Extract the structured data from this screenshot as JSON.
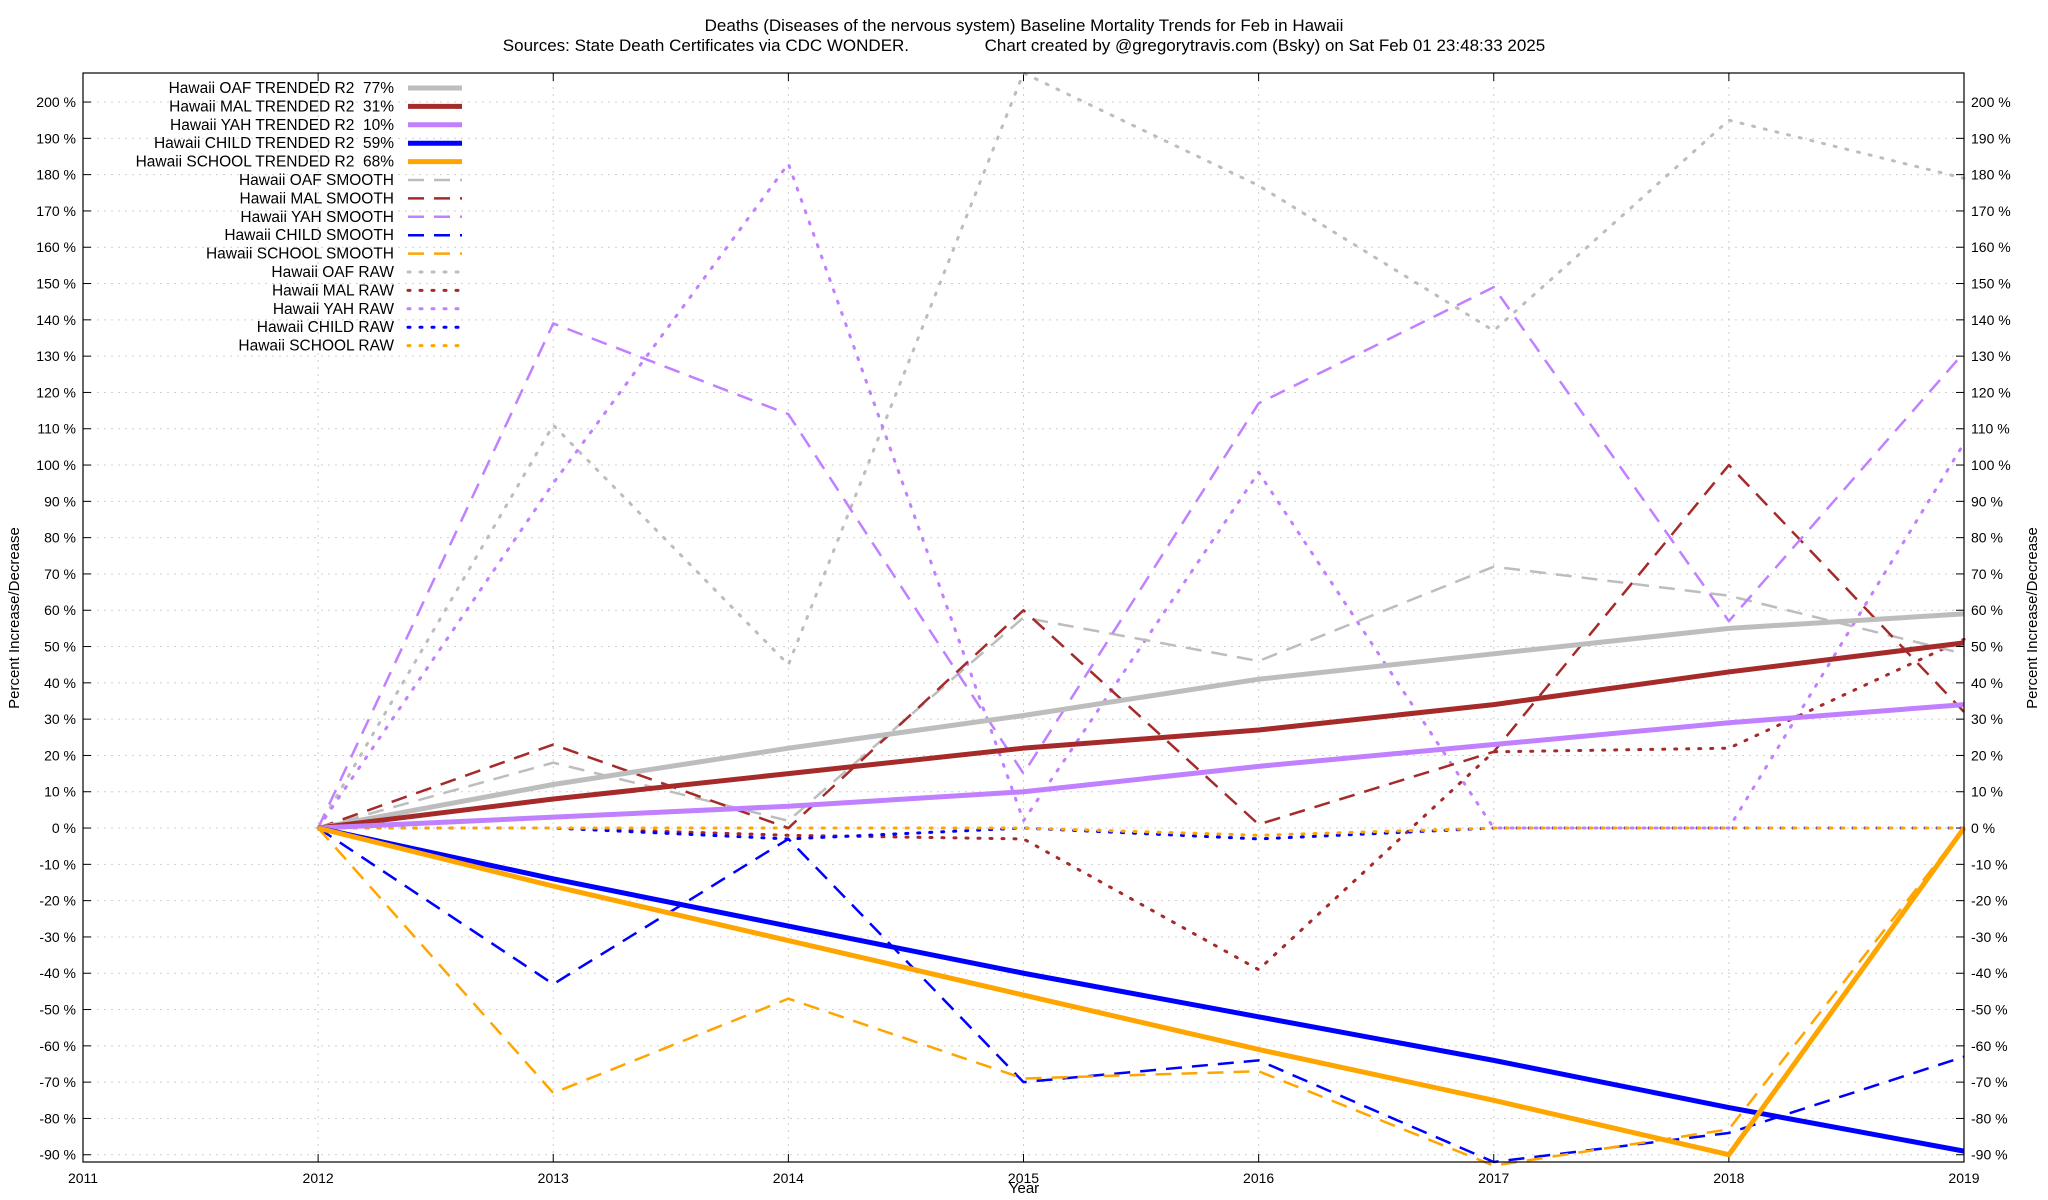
{
  "chart_data": {
    "type": "line",
    "title": "Deaths (Diseases of the nervous system)  Baseline Mortality Trends for Feb in Hawaii",
    "subtitle": "Sources: State Death Certificates via CDC WONDER.                Chart created by @gregorytravis.com (Bsky) on Sat Feb 01 23:48:33 2025",
    "xlabel": "Year",
    "ylabel": "Percent Increase/Decrease",
    "xlim": [
      2011,
      2019
    ],
    "ylim": [
      -92,
      208
    ],
    "x_ticks": [
      "2011",
      "2012",
      "2013",
      "2014",
      "2015",
      "2016",
      "2017",
      "2018",
      "2019"
    ],
    "y_ticks": [
      "-90 %",
      "-80 %",
      "-70 %",
      "-60 %",
      "-50 %",
      "-40 %",
      "-30 %",
      "-20 %",
      "-10 %",
      "0 %",
      "10 %",
      "20 %",
      "30 %",
      "40 %",
      "50 %",
      "60 %",
      "70 %",
      "80 %",
      "90 %",
      "100 %",
      "110 %",
      "120 %",
      "130 %",
      "140 %",
      "150 %",
      "160 %",
      "170 %",
      "180 %",
      "190 %",
      "200 %"
    ],
    "grid": true,
    "legend_position": "top-left",
    "x": [
      2012,
      2013,
      2014,
      2015,
      2016,
      2017,
      2018,
      2019
    ],
    "series": [
      {
        "name": "Hawaii OAF TRENDED R2  77%",
        "style": "trend",
        "color": "#bdbdbd",
        "values": [
          0,
          12,
          22,
          31,
          41,
          48,
          55,
          59
        ]
      },
      {
        "name": "Hawaii MAL TRENDED R2  31%",
        "style": "trend",
        "color": "#a52a2a",
        "values": [
          0,
          8,
          15,
          22,
          27,
          34,
          43,
          51
        ]
      },
      {
        "name": "Hawaii YAH TRENDED R2  10%",
        "style": "trend",
        "color": "#c080ff",
        "values": [
          0,
          3,
          6,
          10,
          17,
          23,
          29,
          34
        ]
      },
      {
        "name": "Hawaii CHILD TRENDED R2  59%",
        "style": "trend",
        "color": "#0000ff",
        "values": [
          0,
          -14,
          -27,
          -40,
          -52,
          -64,
          -77,
          -89
        ]
      },
      {
        "name": "Hawaii SCHOOL TRENDED R2  68%",
        "style": "trend",
        "color": "#ffa500",
        "values": [
          0,
          -16,
          -31,
          -46,
          -61,
          -75,
          -90,
          0
        ]
      },
      {
        "name": "Hawaii OAF SMOOTH",
        "style": "smooth",
        "color": "#bdbdbd",
        "values": [
          0,
          18,
          2,
          58,
          46,
          72,
          64,
          48
        ]
      },
      {
        "name": "Hawaii MAL SMOOTH",
        "style": "smooth",
        "color": "#a52a2a",
        "values": [
          0,
          23,
          0,
          60,
          1,
          21,
          100,
          32
        ]
      },
      {
        "name": "Hawaii YAH SMOOTH",
        "style": "smooth",
        "color": "#c080ff",
        "values": [
          0,
          139,
          114,
          15,
          117,
          149,
          57,
          131
        ]
      },
      {
        "name": "Hawaii CHILD SMOOTH",
        "style": "smooth",
        "color": "#0000ff",
        "values": [
          0,
          -43,
          -3,
          -70,
          -64,
          -92,
          -84,
          -63
        ]
      },
      {
        "name": "Hawaii SCHOOL SMOOTH",
        "style": "smooth",
        "color": "#ffa500",
        "values": [
          0,
          -73,
          -47,
          -69,
          -67,
          -93,
          -83,
          0
        ]
      },
      {
        "name": "Hawaii OAF RAW",
        "style": "raw",
        "color": "#bdbdbd",
        "values": [
          0,
          111,
          45,
          208,
          177,
          137,
          195,
          179
        ]
      },
      {
        "name": "Hawaii MAL RAW",
        "style": "raw",
        "color": "#a52a2a",
        "values": [
          0,
          0,
          -2,
          -3,
          -39,
          21,
          22,
          52
        ]
      },
      {
        "name": "Hawaii YAH RAW",
        "style": "raw",
        "color": "#c080ff",
        "values": [
          0,
          95,
          183,
          2,
          98,
          0,
          0,
          106
        ]
      },
      {
        "name": "Hawaii CHILD RAW",
        "style": "raw",
        "color": "#0000ff",
        "values": [
          0,
          0,
          -3,
          0,
          -3,
          0,
          0,
          0
        ]
      },
      {
        "name": "Hawaii SCHOOL RAW",
        "style": "raw",
        "color": "#ffa500",
        "values": [
          0,
          0,
          0,
          0,
          -2,
          0,
          0,
          0
        ]
      }
    ]
  }
}
